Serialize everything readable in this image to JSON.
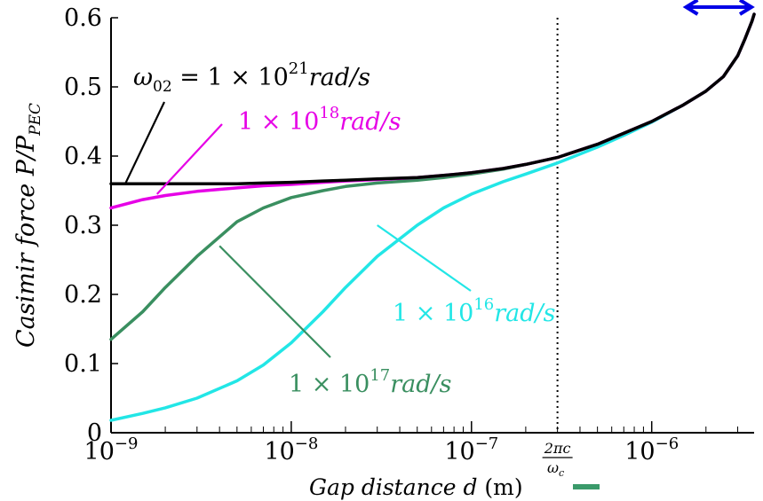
{
  "chart_data": {
    "type": "line",
    "x_scale": "log",
    "xlim": [
      1e-09,
      3.7e-06
    ],
    "ylim": [
      0,
      0.6
    ],
    "grid": false,
    "xlabel": {
      "italic": "Gap distance d",
      "unit": "(m)"
    },
    "ylabel": {
      "italic": "Casimir force P/P",
      "sub": "PEC"
    },
    "y_ticks": [
      0,
      0.1,
      0.2,
      0.3,
      0.4,
      0.5,
      0.6
    ],
    "y_tick_labels": [
      "0",
      "0.1",
      "0.2",
      "0.3",
      "0.4",
      "0.5",
      "0.6"
    ],
    "x_ticks": [
      1e-09,
      1e-08,
      1e-07,
      1e-06
    ],
    "x_tick_labels": [
      {
        "base": "10",
        "exp": "−9"
      },
      {
        "base": "10",
        "exp": "−8"
      },
      {
        "base": "10",
        "exp": "−7"
      },
      {
        "base": "10",
        "exp": "−6"
      }
    ],
    "cutoff": {
      "x": 3e-07,
      "label_num": "2πc",
      "label_den": "ω",
      "label_den_sub": "c",
      "style": "dotted"
    },
    "range_arrow": {
      "x_start": 1.5e-06,
      "x_end": 3.7e-06,
      "color": "#0000e6"
    },
    "xlabel_marker_color": "#3a9a6a",
    "x": [
      1e-09,
      1.5e-09,
      2e-09,
      3e-09,
      5e-09,
      7e-09,
      1e-08,
      1.5e-08,
      2e-08,
      3e-08,
      5e-08,
      7e-08,
      1e-07,
      1.5e-07,
      2e-07,
      3e-07,
      5e-07,
      7e-07,
      1e-06,
      1.5e-06,
      2e-06,
      2.5e-06,
      3e-06,
      3.3e-06,
      3.6e-06,
      3.7e-06
    ],
    "series": [
      {
        "color": "#000000",
        "values": [
          0.36,
          0.36,
          0.36,
          0.36,
          0.36,
          0.361,
          0.362,
          0.364,
          0.365,
          0.367,
          0.369,
          0.372,
          0.376,
          0.382,
          0.388,
          0.398,
          0.417,
          0.433,
          0.45,
          0.474,
          0.494,
          0.515,
          0.545,
          0.57,
          0.595,
          0.605
        ]
      },
      {
        "color": "#e600e6",
        "values": [
          0.325,
          0.337,
          0.343,
          0.349,
          0.354,
          0.357,
          0.359,
          0.362,
          0.364,
          0.366,
          0.369,
          0.372,
          0.376,
          0.382,
          0.388,
          0.398,
          0.417,
          0.433,
          0.45,
          0.474,
          0.494,
          0.515,
          0.545,
          0.57,
          0.595,
          0.605
        ]
      },
      {
        "color": "#3a8f60",
        "values": [
          0.135,
          0.175,
          0.21,
          0.255,
          0.305,
          0.325,
          0.34,
          0.35,
          0.356,
          0.361,
          0.365,
          0.369,
          0.374,
          0.381,
          0.388,
          0.398,
          0.417,
          0.433,
          0.45,
          0.474,
          0.494,
          0.515,
          0.545,
          0.57,
          0.595,
          0.605
        ]
      },
      {
        "color": "#22e6e6",
        "values": [
          0.018,
          0.028,
          0.036,
          0.05,
          0.075,
          0.098,
          0.13,
          0.175,
          0.21,
          0.255,
          0.3,
          0.325,
          0.345,
          0.363,
          0.374,
          0.39,
          0.413,
          0.43,
          0.449,
          0.474,
          0.494,
          0.515,
          0.545,
          0.57,
          0.595,
          0.605
        ]
      }
    ],
    "annotations": [
      {
        "pre": "ω",
        "pre_sub": "02",
        "mid": " = 1 × 10",
        "sup": "21",
        "post": "rad/s",
        "color": "#000000",
        "pointer_x": 1.2e-09,
        "pointer_y": 0.36
      },
      {
        "pre": "",
        "pre_sub": "",
        "mid": "1 × 10",
        "sup": "18",
        "post": "rad/s",
        "color": "#e600e6",
        "pointer_x": 1.8e-09,
        "pointer_y": 0.345
      },
      {
        "pre": "",
        "pre_sub": "",
        "mid": "1 × 10",
        "sup": "17",
        "post": "rad/s",
        "color": "#3a8f60",
        "pointer_x": 4e-09,
        "pointer_y": 0.27
      },
      {
        "pre": "",
        "pre_sub": "",
        "mid": "1 × 10",
        "sup": "16",
        "post": "rad/s",
        "color": "#22e6e6",
        "pointer_x": 3e-08,
        "pointer_y": 0.3
      }
    ]
  }
}
